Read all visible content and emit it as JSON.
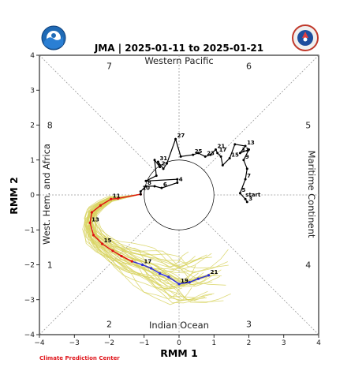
{
  "header": {
    "title": "JMA | 2025-01-11 to 2025-01-21",
    "footer": "Climate Prediction Center"
  },
  "logos": {
    "left": "noaa-logo",
    "right": "nws-logo"
  },
  "colors": {
    "observed": "#000000",
    "ensemble_mean_early": "#e01010",
    "ensemble_mean_late": "#2b2bdd",
    "ensemble_members": "#d8d460",
    "unit_circle": "#000000",
    "footer": "#e0161c"
  },
  "chart_data": {
    "type": "scatter",
    "title": "JMA | 2025-01-11 to 2025-01-21",
    "xlabel": "RMM 1",
    "ylabel": "RMM 2",
    "xlim": [
      -4,
      4
    ],
    "ylim": [
      -4,
      4
    ],
    "xticks": [
      "−4",
      "−3",
      "−2",
      "−1",
      "0",
      "1",
      "2",
      "3",
      "4"
    ],
    "yticks": [
      "−4",
      "−3",
      "−2",
      "−1",
      "0",
      "1",
      "2",
      "3",
      "4"
    ],
    "phase_numbers": [
      {
        "label": "1",
        "position": "lower-left"
      },
      {
        "label": "2",
        "position": "bottom-left"
      },
      {
        "label": "3",
        "position": "bottom-right"
      },
      {
        "label": "4",
        "position": "lower-right"
      },
      {
        "label": "5",
        "position": "upper-right"
      },
      {
        "label": "6",
        "position": "top-right"
      },
      {
        "label": "7",
        "position": "top-left"
      },
      {
        "label": "8",
        "position": "upper-left"
      }
    ],
    "regions": {
      "top": "Western Pacific",
      "bottom": "Indian Ocean",
      "left": "West. Hem. and Africa",
      "right": "Maritime Continent"
    },
    "observed": {
      "start_label": "start",
      "points": [
        {
          "x": 1.95,
          "y": -0.2,
          "label": "3"
        },
        {
          "x": 1.9,
          "y": -0.12
        },
        {
          "x": 1.75,
          "y": 0.05,
          "label": "5"
        },
        {
          "x": 1.9,
          "y": 0.45,
          "label": "7"
        },
        {
          "x": 1.95,
          "y": 0.75
        },
        {
          "x": 1.85,
          "y": 1.0,
          "label": "9"
        },
        {
          "x": 2.0,
          "y": 1.3
        },
        {
          "x": 1.75,
          "y": 1.2,
          "label": "11"
        },
        {
          "x": 1.9,
          "y": 1.4,
          "label": "13"
        },
        {
          "x": 1.6,
          "y": 1.45
        },
        {
          "x": 1.45,
          "y": 1.05,
          "label": "15"
        },
        {
          "x": 1.25,
          "y": 0.85
        },
        {
          "x": 1.2,
          "y": 1.1
        },
        {
          "x": 1.1,
          "y": 1.2,
          "label": "17"
        },
        {
          "x": 1.05,
          "y": 1.3,
          "label": "21"
        },
        {
          "x": 0.9,
          "y": 1.15
        },
        {
          "x": 0.75,
          "y": 1.1,
          "label": "23"
        },
        {
          "x": 0.55,
          "y": 1.2
        },
        {
          "x": 0.4,
          "y": 1.15,
          "label": "25"
        },
        {
          "x": 0.05,
          "y": 1.1
        },
        {
          "x": -0.1,
          "y": 1.6,
          "label": "27"
        },
        {
          "x": -0.35,
          "y": 0.9
        },
        {
          "x": -0.45,
          "y": 0.75
        },
        {
          "x": -0.6,
          "y": 0.95,
          "label": "31"
        },
        {
          "x": -0.55,
          "y": 0.8,
          "label": "2"
        },
        {
          "x": -0.7,
          "y": 1.0
        },
        {
          "x": -0.65,
          "y": 0.55
        },
        {
          "x": -0.95,
          "y": 0.4
        },
        {
          "x": -0.05,
          "y": 0.45
        },
        {
          "x": -0.05,
          "y": 0.35,
          "label": "4"
        },
        {
          "x": -0.5,
          "y": 0.2,
          "label": "6"
        },
        {
          "x": -0.7,
          "y": 0.25
        },
        {
          "x": -0.95,
          "y": 0.25,
          "label": "8"
        },
        {
          "x": -1.1,
          "y": 0.1,
          "label": "10"
        },
        {
          "x": -1.1,
          "y": 0.02
        }
      ]
    },
    "forecast_mean": [
      {
        "x": -1.1,
        "y": 0.02,
        "segment": "early"
      },
      {
        "x": -1.75,
        "y": -0.1,
        "segment": "early"
      },
      {
        "x": -1.95,
        "y": -0.12,
        "segment": "early",
        "label": "11"
      },
      {
        "x": -2.25,
        "y": -0.3,
        "segment": "early"
      },
      {
        "x": -2.5,
        "y": -0.5,
        "segment": "early"
      },
      {
        "x": -2.55,
        "y": -0.8,
        "segment": "early",
        "label": "13"
      },
      {
        "x": -2.45,
        "y": -1.15,
        "segment": "early"
      },
      {
        "x": -2.2,
        "y": -1.4,
        "segment": "early",
        "label": "15"
      },
      {
        "x": -1.9,
        "y": -1.6,
        "segment": "early"
      },
      {
        "x": -1.65,
        "y": -1.75,
        "segment": "early"
      },
      {
        "x": -1.35,
        "y": -1.9,
        "segment": "early"
      },
      {
        "x": -1.05,
        "y": -2.0,
        "segment": "late",
        "label": "17"
      },
      {
        "x": -0.8,
        "y": -2.1,
        "segment": "late"
      },
      {
        "x": -0.55,
        "y": -2.25,
        "segment": "late"
      },
      {
        "x": -0.3,
        "y": -2.35,
        "segment": "late"
      },
      {
        "x": 0.0,
        "y": -2.55,
        "segment": "late",
        "label": "19"
      },
      {
        "x": 0.3,
        "y": -2.5,
        "segment": "late"
      },
      {
        "x": 0.55,
        "y": -2.4,
        "segment": "late"
      },
      {
        "x": 0.85,
        "y": -2.3,
        "segment": "late",
        "label": "21"
      }
    ],
    "ensemble_member_count": 40
  }
}
